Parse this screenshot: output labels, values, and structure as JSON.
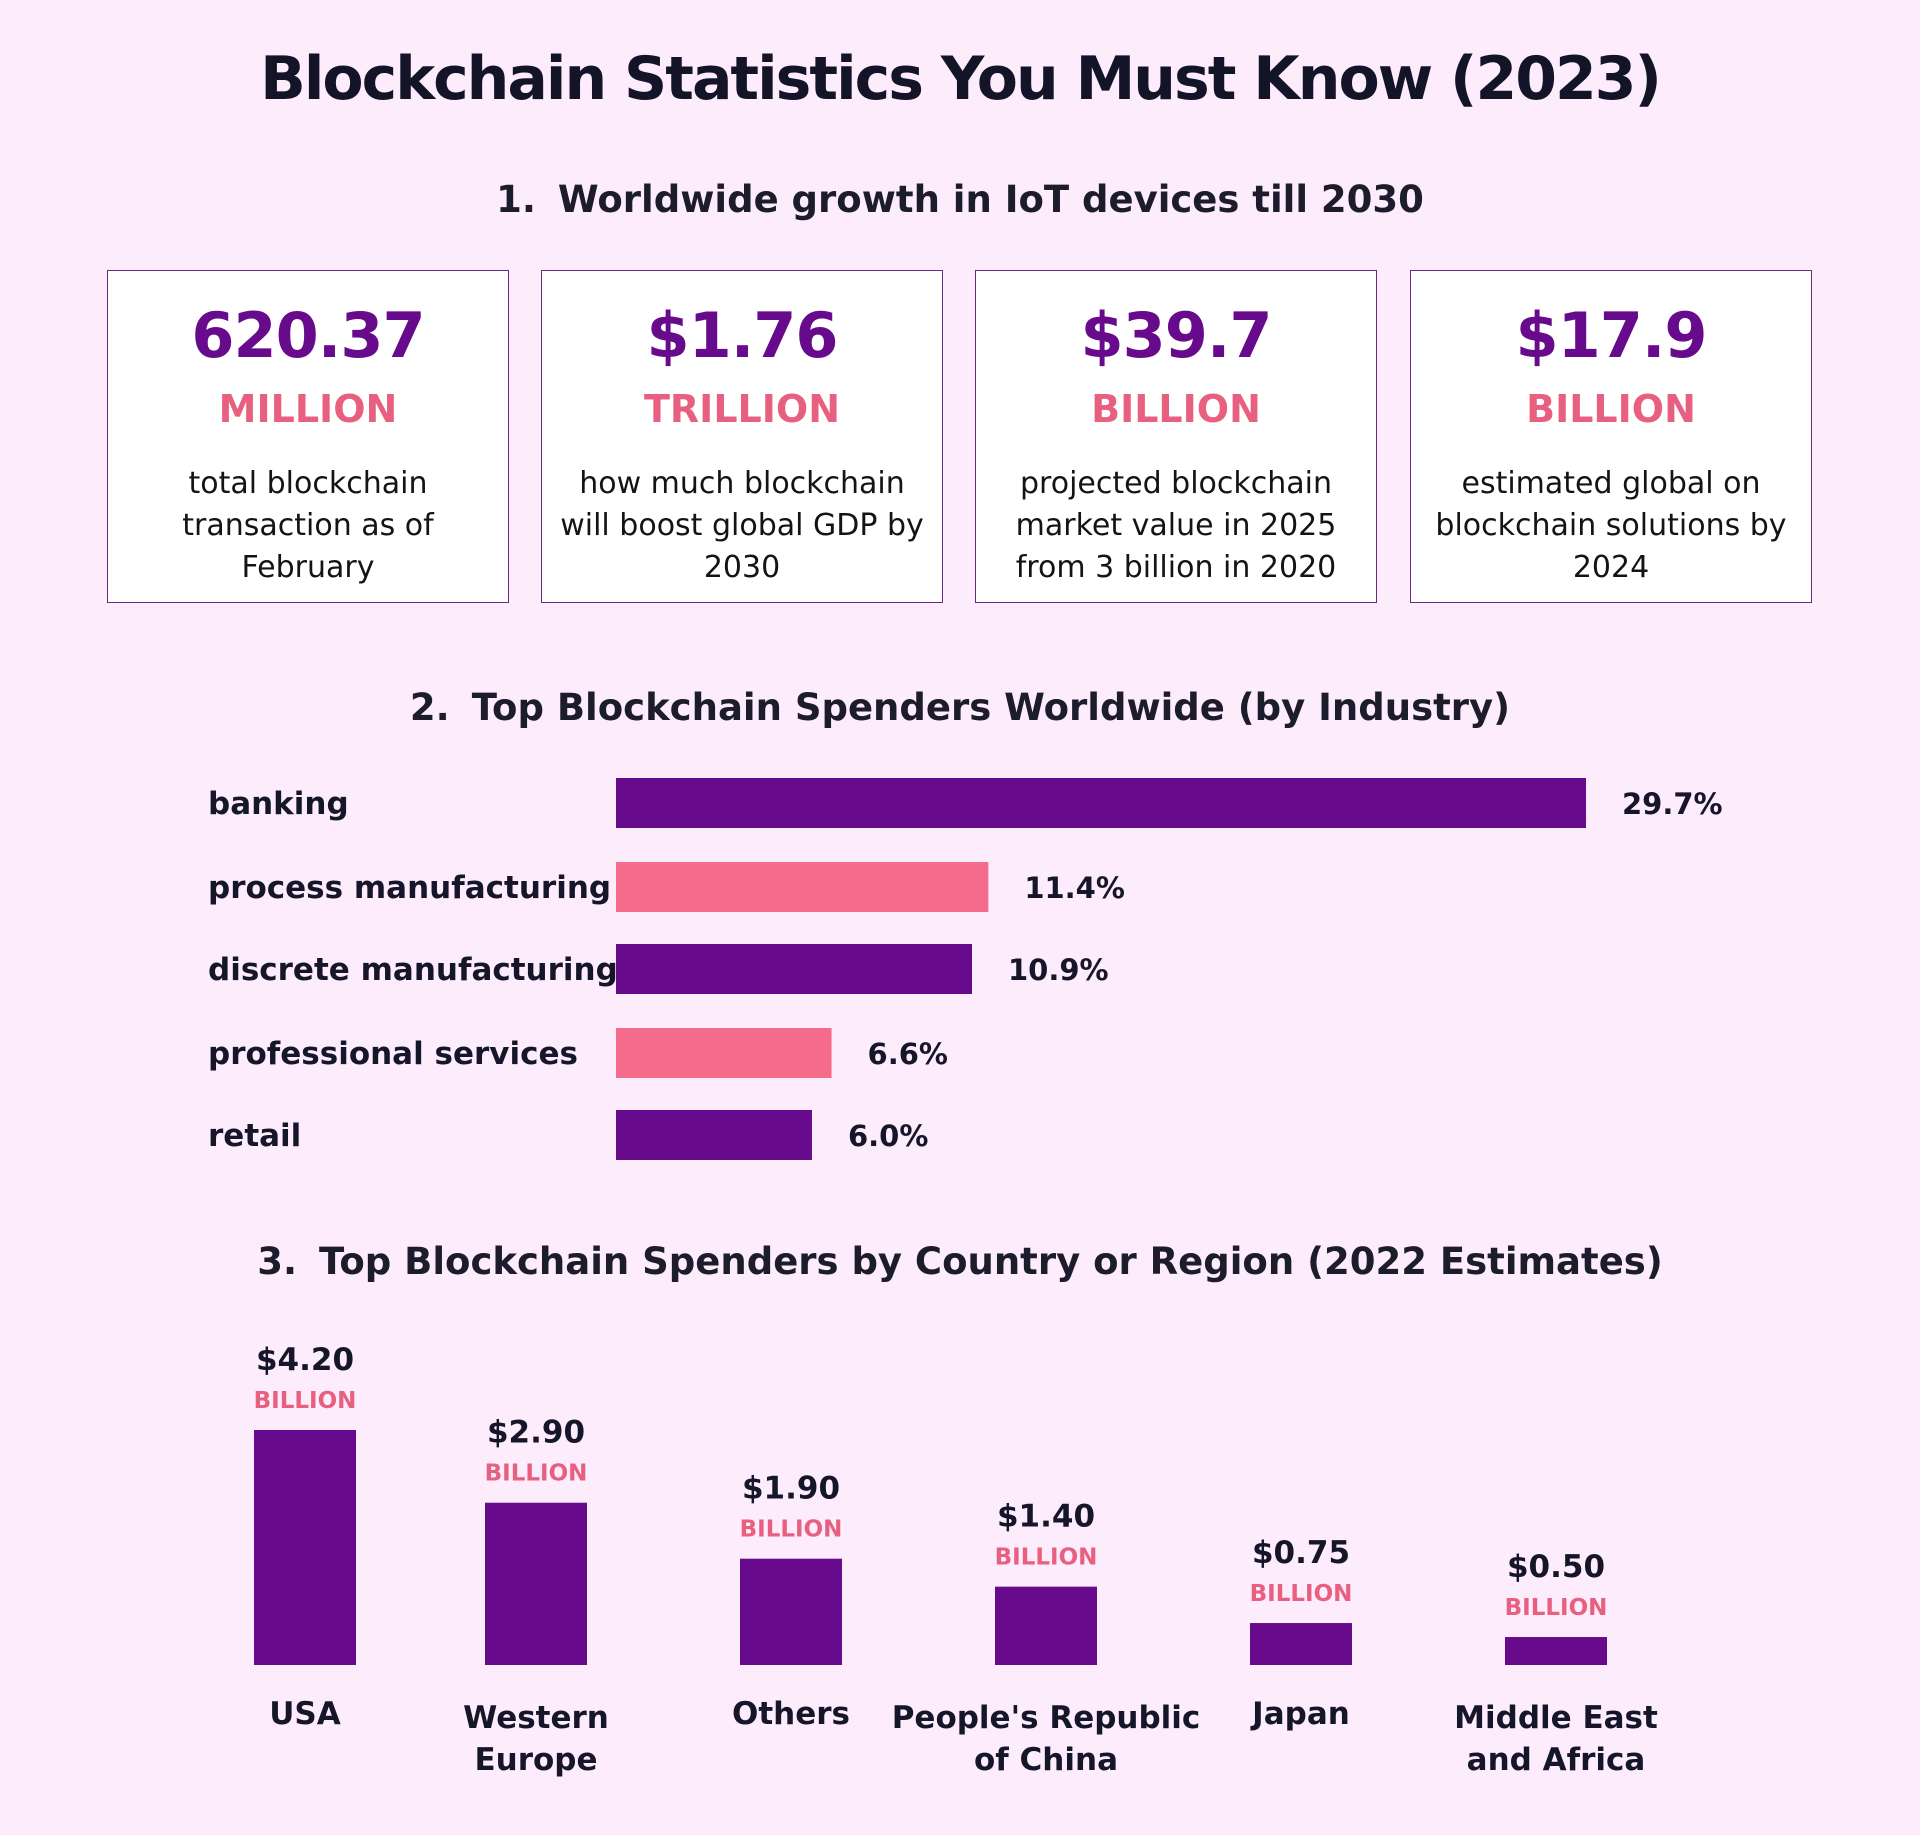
{
  "title": "Blockchain Statistics You Must Know (2023)",
  "section1": {
    "number": "1.",
    "title": "Worldwide growth in IoT devices till 2030",
    "cards": [
      {
        "value": "620.37",
        "unit": "MILLION",
        "desc": "total blockchain transaction as of February"
      },
      {
        "value": "$1.76",
        "unit": "TRILLION",
        "desc": "how much blockchain will boost global GDP by 2030"
      },
      {
        "value": "$39.7",
        "unit": "BILLION",
        "desc": "projected blockchain market value in 2025 from 3 billion in 2020"
      },
      {
        "value": "$17.9",
        "unit": "BILLION",
        "desc": "estimated global on blockchain solutions by 2024"
      }
    ]
  },
  "section2": {
    "number": "2.",
    "title": "Top Blockchain Spenders Worldwide (by Industry)"
  },
  "section3": {
    "number": "3.",
    "title": "Top Blockchain Spenders by Country or Region (2022 Estimates)"
  },
  "colors": {
    "purple": "#680a8c",
    "pink": "#f46b8c",
    "unit_pink": "#e8607f",
    "background": "#fcecfc"
  },
  "chart_data": [
    {
      "type": "bar",
      "orientation": "horizontal",
      "title": "Top Blockchain Spenders Worldwide (by Industry)",
      "categories": [
        "banking",
        "process manufacturing",
        "discrete manufacturing",
        "professional services",
        "retail"
      ],
      "values": [
        29.7,
        11.4,
        10.9,
        6.6,
        6.0
      ],
      "value_labels": [
        "29.7%",
        "11.4%",
        "10.9%",
        "6.6%",
        "6.0%"
      ],
      "bar_colors": [
        "#680a8c",
        "#f46b8c",
        "#680a8c",
        "#f46b8c",
        "#680a8c"
      ],
      "unit": "%"
    },
    {
      "type": "bar",
      "orientation": "vertical",
      "title": "Top Blockchain Spenders by Country or Region (2022 Estimates)",
      "categories": [
        [
          "USA"
        ],
        [
          "Western",
          "Europe"
        ],
        [
          "Others"
        ],
        [
          "People's Republic",
          "of China"
        ],
        [
          "Japan"
        ],
        [
          "Middle East",
          "and Africa"
        ]
      ],
      "values": [
        4.2,
        2.9,
        1.9,
        1.4,
        0.75,
        0.5
      ],
      "value_labels": [
        "$4.20",
        "$2.90",
        "$1.90",
        "$1.40",
        "$0.75",
        "$0.50"
      ],
      "unit_label": "BILLION",
      "bar_color": "#680a8c"
    }
  ]
}
